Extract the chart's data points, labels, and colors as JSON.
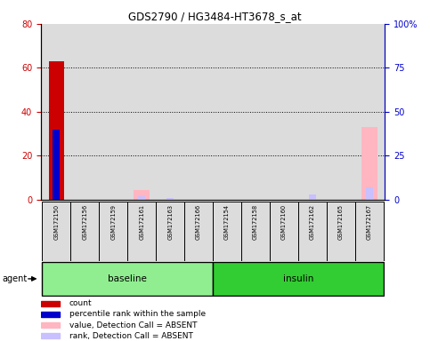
{
  "title": "GDS2790 / HG3484-HT3678_s_at",
  "samples": [
    "GSM172150",
    "GSM172156",
    "GSM172159",
    "GSM172161",
    "GSM172163",
    "GSM172166",
    "GSM172154",
    "GSM172158",
    "GSM172160",
    "GSM172162",
    "GSM172165",
    "GSM172167"
  ],
  "count_values": [
    63,
    0,
    0,
    0,
    0,
    0,
    0,
    0,
    0,
    0,
    0,
    0
  ],
  "rank_values": [
    40,
    0,
    0,
    0,
    0,
    0,
    0,
    0,
    0,
    0,
    0,
    0
  ],
  "absent_value_values": [
    0,
    0,
    0,
    4.5,
    0,
    0,
    0,
    0,
    0,
    0,
    0,
    33
  ],
  "absent_rank_values": [
    0,
    0,
    0,
    2,
    1,
    0,
    0,
    0,
    0,
    3,
    0,
    7
  ],
  "ylim_left": [
    0,
    80
  ],
  "ylim_right": [
    0,
    100
  ],
  "yticks_left": [
    0,
    20,
    40,
    60,
    80
  ],
  "yticks_right": [
    0,
    25,
    50,
    75,
    100
  ],
  "yticklabels_right": [
    "0",
    "25",
    "50",
    "75",
    "100%"
  ],
  "left_tick_color": "#CC0000",
  "right_tick_color": "#0000CC",
  "absent_value_color": "#FFB6C1",
  "absent_rank_color": "#C8C0FF",
  "count_color": "#CC0000",
  "rank_color": "#0000CC",
  "bg_plot": "#DCDCDC",
  "bg_figure": "#FFFFFF",
  "baseline_color": "#90EE90",
  "insulin_color": "#32CD32",
  "agent_label": "agent",
  "legend_items": [
    {
      "label": "count",
      "color": "#CC0000"
    },
    {
      "label": "percentile rank within the sample",
      "color": "#0000CC"
    },
    {
      "label": "value, Detection Call = ABSENT",
      "color": "#FFB6C1"
    },
    {
      "label": "rank, Detection Call = ABSENT",
      "color": "#C8C0FF"
    }
  ]
}
